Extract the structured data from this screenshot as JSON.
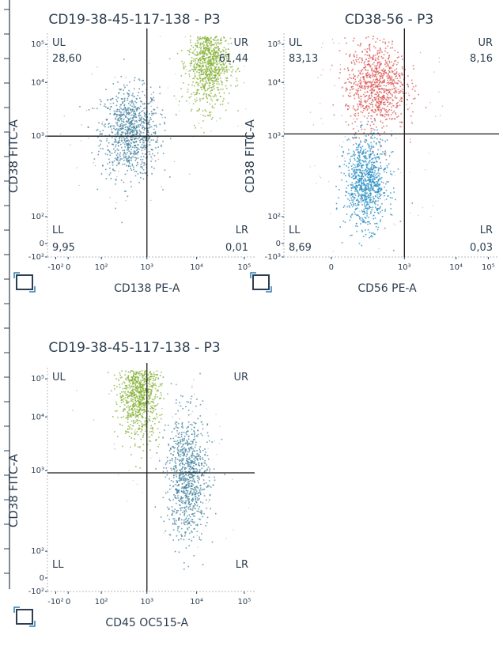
{
  "chart_data": [
    {
      "type": "scatter",
      "title": "CD19-38-45-117-138 - P3",
      "xlabel": "CD138 PE-A",
      "ylabel": "CD38 FITC-A",
      "x_scale": "log",
      "y_scale": "log",
      "x_ticks": [
        "-10²",
        "0",
        "10²",
        "10³",
        "10⁴",
        "10⁵"
      ],
      "y_ticks": [
        "-10²",
        "0",
        "10²",
        "10³",
        "10⁴",
        "10⁵"
      ],
      "gate": {
        "x": 1000,
        "y": 1000
      },
      "quadrants": [
        {
          "name": "UL",
          "value": "28,60"
        },
        {
          "name": "UR",
          "value": "61,44"
        },
        {
          "name": "LL",
          "value": "9,95"
        },
        {
          "name": "LR",
          "value": "0,01"
        }
      ],
      "populations": [
        {
          "color": "#3d7f9c",
          "x_center": 250,
          "y_center": 3000
        },
        {
          "color": "#7fae2c",
          "x_center": 15000,
          "y_center": 50000
        }
      ]
    },
    {
      "type": "scatter",
      "title": "CD38-56 - P3",
      "xlabel": "CD56 PE-A",
      "ylabel": "CD38 FITC-A",
      "x_scale": "log",
      "y_scale": "log",
      "x_ticks": [
        "0",
        "10³",
        "10⁴",
        "10⁵"
      ],
      "y_ticks": [
        "-10³",
        "0",
        "10²",
        "10³",
        "10⁴",
        "10⁵"
      ],
      "gate": {
        "x": 3000,
        "y": 1000
      },
      "quadrants": [
        {
          "name": "UL",
          "value": "83,13"
        },
        {
          "name": "UR",
          "value": "8,16"
        },
        {
          "name": "LL",
          "value": "8,69"
        },
        {
          "name": "LR",
          "value": "0,03"
        }
      ],
      "populations": [
        {
          "color": "#d9534f",
          "x_center": 800,
          "y_center": 20000
        },
        {
          "color": "#1f8ac0",
          "x_center": 500,
          "y_center": 400
        }
      ]
    },
    {
      "type": "scatter",
      "title": "CD19-38-45-117-138 - P3",
      "xlabel": "CD45 OC515-A",
      "ylabel": "CD38 FITC-A",
      "x_scale": "log",
      "y_scale": "log",
      "x_ticks": [
        "-10²",
        "0",
        "10²",
        "10³",
        "10⁴",
        "10⁵"
      ],
      "y_ticks": [
        "-10²",
        "0",
        "10²",
        "10³",
        "10⁴",
        "10⁵"
      ],
      "gate": {
        "x": 1000,
        "y": 1000
      },
      "quadrants": [
        {
          "name": "UL",
          "value": ""
        },
        {
          "name": "UR",
          "value": ""
        },
        {
          "name": "LL",
          "value": ""
        },
        {
          "name": "LR",
          "value": ""
        }
      ],
      "populations": [
        {
          "color": "#7fae2c",
          "x_center": 400,
          "y_center": 60000
        },
        {
          "color": "#3d7f9c",
          "x_center": 5000,
          "y_center": 2000
        }
      ]
    }
  ]
}
